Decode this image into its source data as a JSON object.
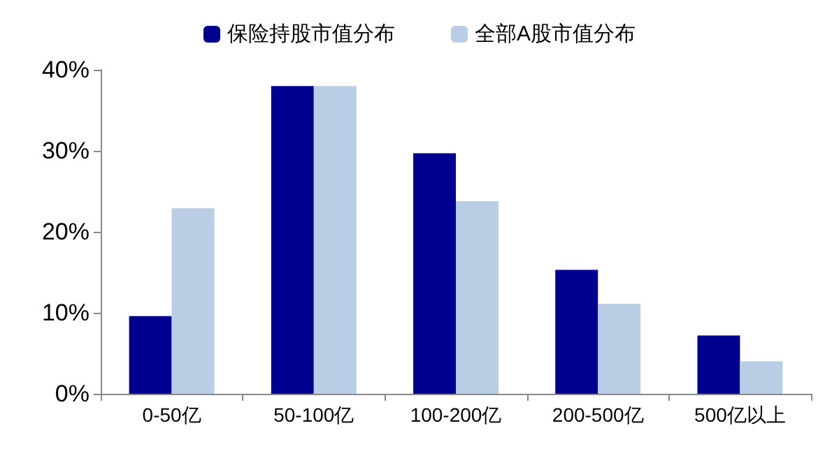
{
  "chart_data": {
    "type": "bar",
    "categories": [
      "0-50亿",
      "50-100亿",
      "100-200亿",
      "200-500亿",
      "500亿以上"
    ],
    "series": [
      {
        "name": "保险持股市值分布",
        "color": "#000090",
        "values": [
          9.6,
          38,
          29.7,
          15.3,
          7.2
        ]
      },
      {
        "name": "全部A股市值分布",
        "color": "#b9cde5",
        "values": [
          22.9,
          38,
          23.8,
          11.1,
          4.0
        ]
      }
    ],
    "ylim": [
      0,
      40
    ],
    "yticks": [
      {
        "value": 0,
        "label": "0%"
      },
      {
        "value": 10,
        "label": "10%"
      },
      {
        "value": 20,
        "label": "20%"
      },
      {
        "value": 30,
        "label": "30%"
      },
      {
        "value": 40,
        "label": "40%"
      }
    ],
    "grid": false,
    "legend": "top"
  }
}
